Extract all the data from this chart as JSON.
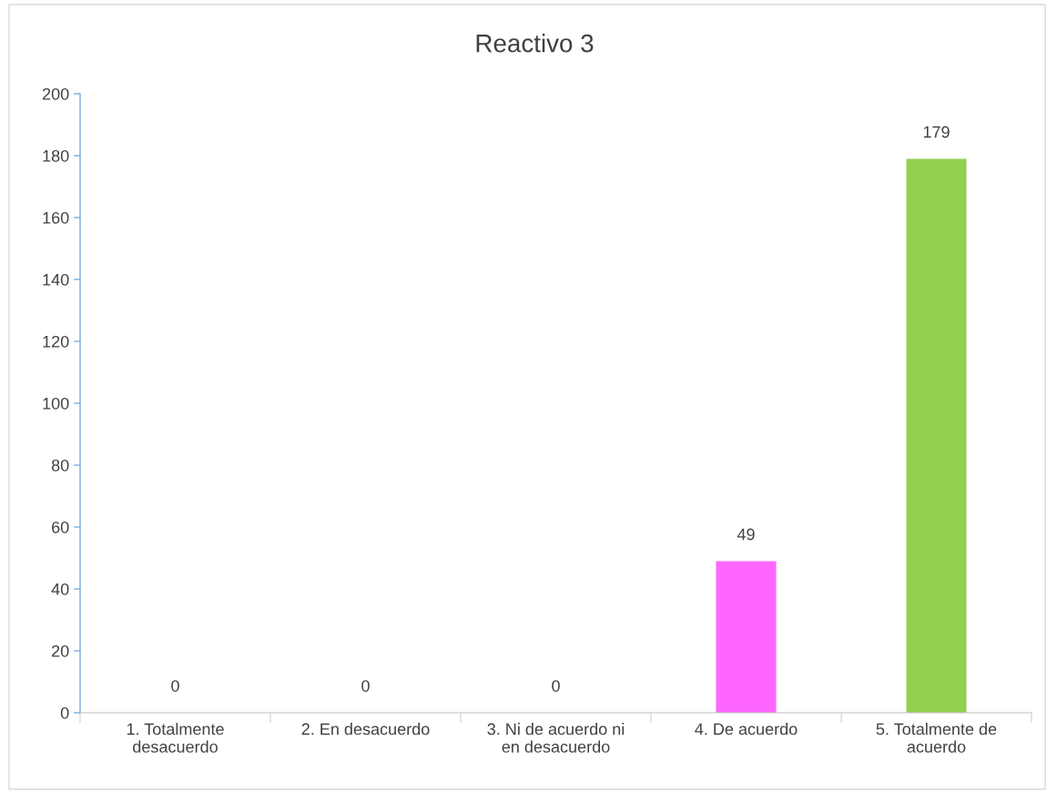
{
  "chart_data": {
    "type": "bar",
    "title": "Reactivo 3",
    "categories": [
      "1. Totalmente desacuerdo",
      "2. En desacuerdo",
      "3. Ni de acuerdo ni en desacuerdo",
      "4. De acuerdo",
      "5. Totalmente de acuerdo"
    ],
    "values": [
      0,
      0,
      0,
      49,
      179
    ],
    "colors": [
      "#5b9bd5",
      "#ed7d31",
      "#a5a5a5",
      "#ff66ff",
      "#92d050"
    ],
    "ylim": [
      0,
      200
    ],
    "yticks": [
      0,
      20,
      40,
      60,
      80,
      100,
      120,
      140,
      160,
      180,
      200
    ],
    "data_labels": true,
    "grid": false
  }
}
